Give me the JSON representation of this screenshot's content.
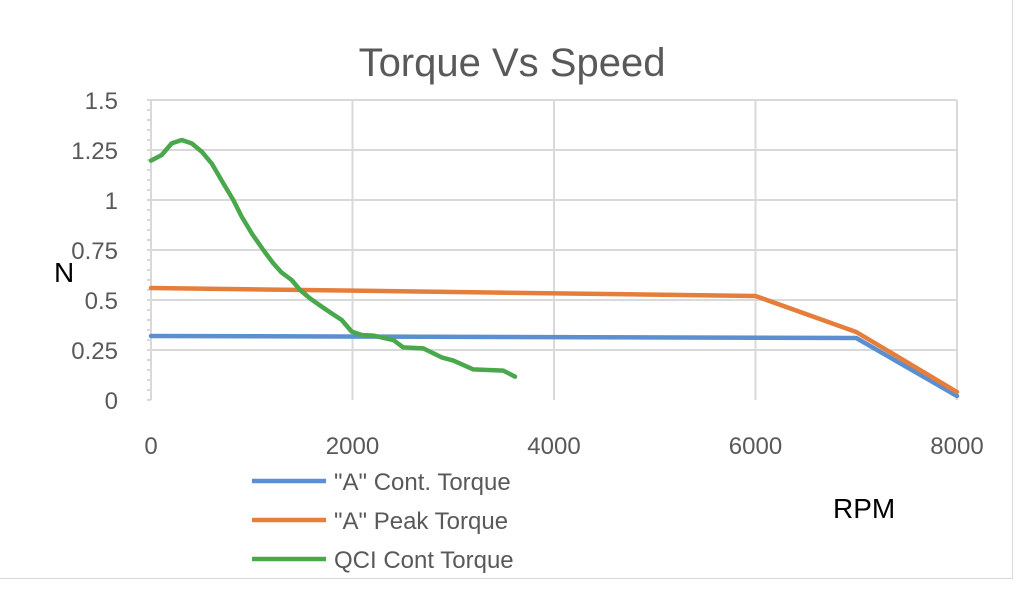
{
  "chart_data": {
    "type": "line",
    "title": "Torque Vs Speed",
    "xlabel": "RPM",
    "ylabel": "N",
    "xlim": [
      0,
      8000
    ],
    "ylim": [
      0,
      1.5
    ],
    "xticks": [
      "0",
      "2000",
      "4000",
      "6000",
      "8000"
    ],
    "xtick_values": [
      0,
      2000,
      4000,
      6000,
      8000
    ],
    "yticks": [
      "0",
      "0.25",
      "0.5",
      "0.75",
      "1",
      "1.25",
      "1.5"
    ],
    "ytick_values": [
      0,
      0.25,
      0.5,
      0.75,
      1,
      1.25,
      1.5
    ],
    "grid": true,
    "legend_position": "bottom-left",
    "series": [
      {
        "name": "\"A\"  Cont. Torque",
        "color": "#5b8fd0",
        "x": [
          0,
          7000,
          8000
        ],
        "y": [
          0.32,
          0.31,
          0.02
        ]
      },
      {
        "name": "\"A\" Peak Torque",
        "color": "#e67e3b",
        "x": [
          0,
          6000,
          7000,
          8000
        ],
        "y": [
          0.56,
          0.52,
          0.34,
          0.04
        ]
      },
      {
        "name": "QCI Cont Torque",
        "color": "#4aa84c",
        "x": [
          0,
          106,
          205,
          305,
          404,
          503,
          602,
          718,
          817,
          900,
          1000,
          1115,
          1214,
          1297,
          1396,
          1479,
          1578,
          1694,
          1793,
          1893,
          1992,
          2091,
          2207,
          2405,
          2504,
          2703,
          2885,
          3001,
          3199,
          3497,
          3613
        ],
        "y": [
          1.197,
          1.225,
          1.283,
          1.3,
          1.283,
          1.242,
          1.183,
          1.083,
          1.0,
          0.917,
          0.833,
          0.75,
          0.683,
          0.637,
          0.6,
          0.55,
          0.508,
          0.467,
          0.433,
          0.4,
          0.342,
          0.325,
          0.322,
          0.3,
          0.263,
          0.258,
          0.213,
          0.197,
          0.153,
          0.147,
          0.117
        ]
      }
    ]
  }
}
